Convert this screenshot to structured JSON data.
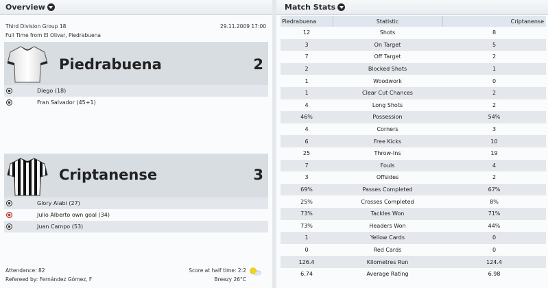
{
  "overview": {
    "title": "Overview",
    "competition": "Third Division Group 18",
    "date": "29.11.2009 17:00",
    "venue": "Full Time from El Olivar, Piedrabuena",
    "home": {
      "name": "Piedrabuena",
      "score": "2",
      "shirt_icon": "white-shirt-icon",
      "goals": [
        "Diego (18)",
        "Fran Salvador (45+1)"
      ]
    },
    "away": {
      "name": "Criptanense",
      "score": "3",
      "shirt_icon": "black-white-striped-shirt-icon",
      "goals": [
        "Glory Alabi (27)",
        "Julio Alberto own goal (34)",
        "Juan Campo (53)"
      ]
    },
    "attendance": "Attendance: 82",
    "referee": "Refereed by: Fernández Gómez, F",
    "half_time": "Score at half time: 2:2",
    "weather": "Breezy 26°C",
    "weather_icon": "sun-cloud-icon"
  },
  "match_stats": {
    "title": "Match Stats",
    "columns": [
      "Piedrabuena",
      "Statistic",
      "Criptanense"
    ],
    "rows": [
      {
        "home": "12",
        "stat": "Shots",
        "away": "8"
      },
      {
        "home": "3",
        "stat": "On Target",
        "away": "5"
      },
      {
        "home": "7",
        "stat": "Off Target",
        "away": "2"
      },
      {
        "home": "2",
        "stat": "Blocked Shots",
        "away": "1"
      },
      {
        "home": "1",
        "stat": "Woodwork",
        "away": "0"
      },
      {
        "home": "1",
        "stat": "Clear Cut Chances",
        "away": "2"
      },
      {
        "home": "4",
        "stat": "Long Shots",
        "away": "2"
      },
      {
        "home": "46%",
        "stat": "Possession",
        "away": "54%"
      },
      {
        "home": "4",
        "stat": "Corners",
        "away": "3"
      },
      {
        "home": "6",
        "stat": "Free Kicks",
        "away": "10"
      },
      {
        "home": "25",
        "stat": "Throw-Ins",
        "away": "19"
      },
      {
        "home": "7",
        "stat": "Fouls",
        "away": "4"
      },
      {
        "home": "3",
        "stat": "Offsides",
        "away": "2"
      },
      {
        "home": "69%",
        "stat": "Passes Completed",
        "away": "67%"
      },
      {
        "home": "25%",
        "stat": "Crosses Completed",
        "away": "8%"
      },
      {
        "home": "73%",
        "stat": "Tackles Won",
        "away": "71%"
      },
      {
        "home": "73%",
        "stat": "Headers Won",
        "away": "44%"
      },
      {
        "home": "1",
        "stat": "Yellow Cards",
        "away": "0"
      },
      {
        "home": "0",
        "stat": "Red Cards",
        "away": "0"
      },
      {
        "home": "126.4",
        "stat": "Kilometres Run",
        "away": "124.4"
      },
      {
        "home": "6.74",
        "stat": "Average Rating",
        "away": "6.98"
      }
    ]
  }
}
